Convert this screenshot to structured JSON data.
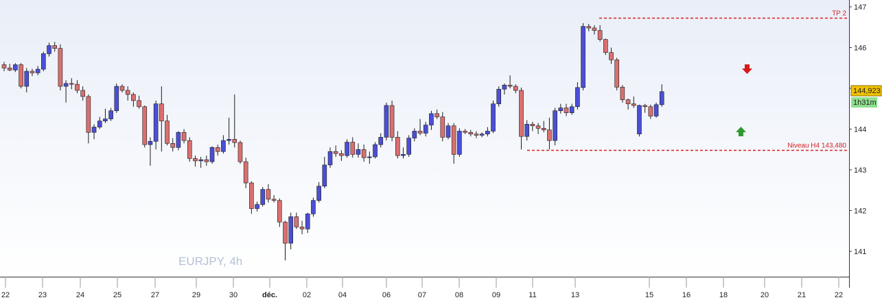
{
  "chart_data": {
    "type": "candlestick",
    "symbol_label": "EURJPY, 4h",
    "ylim": [
      140.55,
      147.15
    ],
    "y_ticks": [
      141,
      142,
      143,
      144,
      145,
      146,
      147
    ],
    "x_labels": [
      "22",
      "23",
      "24",
      "25",
      "27",
      "29",
      "30",
      "déc.",
      "02",
      "04",
      "06",
      "07",
      "08",
      "09",
      "11",
      "13",
      "15",
      "16",
      "18",
      "20",
      "21",
      "22"
    ],
    "last_price": "144,923",
    "countdown": "1h31m",
    "levels": [
      {
        "label": "TP 2",
        "value": 146.73,
        "color": "#d62020"
      },
      {
        "label": "Niveau H4 143,480",
        "value": 143.48,
        "color": "#d62020"
      }
    ],
    "signals": [
      {
        "type": "down-arrow",
        "color": "#d61a1a"
      },
      {
        "type": "up-arrow",
        "color": "#2f9a2f"
      }
    ],
    "colors": {
      "bull": "#4b4fd6",
      "bear": "#d97070",
      "wick": "#1a1a1a",
      "background_top": "#e9eef8",
      "background_bottom": "#ffffff"
    },
    "candles": [
      [
        145.58,
        145.65,
        145.42,
        145.5
      ],
      [
        145.5,
        145.6,
        145.42,
        145.45
      ],
      [
        145.45,
        145.62,
        145.4,
        145.58
      ],
      [
        145.58,
        145.62,
        145.0,
        145.05
      ],
      [
        145.05,
        145.5,
        144.9,
        145.42
      ],
      [
        145.42,
        145.48,
        145.3,
        145.38
      ],
      [
        145.38,
        145.55,
        145.32,
        145.47
      ],
      [
        145.47,
        145.9,
        145.42,
        145.85
      ],
      [
        145.85,
        146.12,
        145.78,
        146.05
      ],
      [
        146.05,
        146.14,
        145.9,
        145.98
      ],
      [
        145.98,
        146.08,
        144.95,
        145.05
      ],
      [
        145.05,
        145.2,
        144.65,
        145.12
      ],
      [
        145.12,
        145.25,
        144.98,
        145.1
      ],
      [
        145.1,
        145.2,
        144.88,
        144.95
      ],
      [
        144.95,
        145.05,
        144.7,
        144.8
      ],
      [
        144.8,
        144.85,
        143.65,
        143.92
      ],
      [
        143.92,
        144.12,
        143.75,
        144.05
      ],
      [
        144.05,
        144.3,
        144.0,
        144.2
      ],
      [
        144.2,
        144.5,
        144.15,
        144.25
      ],
      [
        144.25,
        144.52,
        144.2,
        144.45
      ],
      [
        144.45,
        145.12,
        144.4,
        145.05
      ],
      [
        145.05,
        145.1,
        144.9,
        144.95
      ],
      [
        144.95,
        145.05,
        144.7,
        144.85
      ],
      [
        144.85,
        144.9,
        144.55,
        144.7
      ],
      [
        144.7,
        144.82,
        144.5,
        144.55
      ],
      [
        144.55,
        144.58,
        143.55,
        143.62
      ],
      [
        143.62,
        143.8,
        143.1,
        143.7
      ],
      [
        143.7,
        144.7,
        143.5,
        144.62
      ],
      [
        144.62,
        145.05,
        143.45,
        144.2
      ],
      [
        144.2,
        144.35,
        143.6,
        143.65
      ],
      [
        143.65,
        143.78,
        143.45,
        143.55
      ],
      [
        143.55,
        143.95,
        143.48,
        143.92
      ],
      [
        143.92,
        144.0,
        143.65,
        143.72
      ],
      [
        143.72,
        143.8,
        143.2,
        143.28
      ],
      [
        143.28,
        143.35,
        143.08,
        143.22
      ],
      [
        143.22,
        143.32,
        143.05,
        143.25
      ],
      [
        143.25,
        143.35,
        143.1,
        143.2
      ],
      [
        143.2,
        143.58,
        143.15,
        143.55
      ],
      [
        143.55,
        143.62,
        143.35,
        143.45
      ],
      [
        143.45,
        143.85,
        143.4,
        143.72
      ],
      [
        143.72,
        144.28,
        143.62,
        143.75
      ],
      [
        143.75,
        144.85,
        143.55,
        143.67
      ],
      [
        143.67,
        143.72,
        143.15,
        143.2
      ],
      [
        143.2,
        143.3,
        142.55,
        142.68
      ],
      [
        142.68,
        142.72,
        141.92,
        142.05
      ],
      [
        142.05,
        142.22,
        141.98,
        142.15
      ],
      [
        142.15,
        142.58,
        142.1,
        142.52
      ],
      [
        142.52,
        142.65,
        142.2,
        142.28
      ],
      [
        142.28,
        142.38,
        142.2,
        142.25
      ],
      [
        142.25,
        142.3,
        141.6,
        141.72
      ],
      [
        141.72,
        141.75,
        140.78,
        141.2
      ],
      [
        141.2,
        141.95,
        141.05,
        141.85
      ],
      [
        141.85,
        141.95,
        141.55,
        141.6
      ],
      [
        141.6,
        141.75,
        141.42,
        141.55
      ],
      [
        141.55,
        141.95,
        141.45,
        141.92
      ],
      [
        141.92,
        142.32,
        141.85,
        142.25
      ],
      [
        142.25,
        142.7,
        142.2,
        142.6
      ],
      [
        142.6,
        143.32,
        142.55,
        143.12
      ],
      [
        143.12,
        143.55,
        143.05,
        143.45
      ],
      [
        143.45,
        143.6,
        143.32,
        143.4
      ],
      [
        143.4,
        143.48,
        143.22,
        143.35
      ],
      [
        143.35,
        143.75,
        143.3,
        143.68
      ],
      [
        143.68,
        143.8,
        143.3,
        143.38
      ],
      [
        143.38,
        143.65,
        143.3,
        143.5
      ],
      [
        143.5,
        143.62,
        143.2,
        143.3
      ],
      [
        143.3,
        143.45,
        143.15,
        143.32
      ],
      [
        143.32,
        143.68,
        143.28,
        143.62
      ],
      [
        143.62,
        143.9,
        143.55,
        143.8
      ],
      [
        143.8,
        144.65,
        143.72,
        144.58
      ],
      [
        144.58,
        144.7,
        143.7,
        143.8
      ],
      [
        143.8,
        143.95,
        143.28,
        143.35
      ],
      [
        143.35,
        143.55,
        143.28,
        143.38
      ],
      [
        143.38,
        143.85,
        143.32,
        143.78
      ],
      [
        143.78,
        144.02,
        143.7,
        143.95
      ],
      [
        143.95,
        144.25,
        143.85,
        143.9
      ],
      [
        143.9,
        144.18,
        143.82,
        144.1
      ],
      [
        144.1,
        144.45,
        143.98,
        144.38
      ],
      [
        144.38,
        144.48,
        144.25,
        144.3
      ],
      [
        144.3,
        144.42,
        143.7,
        143.8
      ],
      [
        143.8,
        144.15,
        143.75,
        144.08
      ],
      [
        144.08,
        144.15,
        143.15,
        143.38
      ],
      [
        143.38,
        144.02,
        143.32,
        143.95
      ],
      [
        143.95,
        144.0,
        143.88,
        143.92
      ],
      [
        143.92,
        143.98,
        143.82,
        143.88
      ],
      [
        143.88,
        143.95,
        143.78,
        143.85
      ],
      [
        143.85,
        143.92,
        143.8,
        143.88
      ],
      [
        143.88,
        144.05,
        143.82,
        143.95
      ],
      [
        143.95,
        144.7,
        143.9,
        144.62
      ],
      [
        144.62,
        145.05,
        144.55,
        144.98
      ],
      [
        144.98,
        145.12,
        144.85,
        145.08
      ],
      [
        145.08,
        145.32,
        145.0,
        145.05
      ],
      [
        145.05,
        145.1,
        144.88,
        144.95
      ],
      [
        144.95,
        145.02,
        143.5,
        143.82
      ],
      [
        143.82,
        144.22,
        143.72,
        144.12
      ],
      [
        144.12,
        144.18,
        143.95,
        144.08
      ],
      [
        144.08,
        144.15,
        143.88,
        144.02
      ],
      [
        144.02,
        144.2,
        143.92,
        143.98
      ],
      [
        143.98,
        144.28,
        143.5,
        143.72
      ],
      [
        143.72,
        144.52,
        143.6,
        144.45
      ],
      [
        144.45,
        144.62,
        144.38,
        144.52
      ],
      [
        144.52,
        144.62,
        144.32,
        144.4
      ],
      [
        144.4,
        144.62,
        144.35,
        144.55
      ],
      [
        144.55,
        145.15,
        144.48,
        145.02
      ],
      [
        145.02,
        146.6,
        144.95,
        146.52
      ],
      [
        146.52,
        146.58,
        146.4,
        146.48
      ],
      [
        146.48,
        146.55,
        146.32,
        146.42
      ],
      [
        146.42,
        146.55,
        146.15,
        146.2
      ],
      [
        146.2,
        146.22,
        145.82,
        145.88
      ],
      [
        145.88,
        146.0,
        145.6,
        145.7
      ],
      [
        145.7,
        145.75,
        144.95,
        145.03
      ],
      [
        145.03,
        145.08,
        144.65,
        144.72
      ],
      [
        144.72,
        144.75,
        144.48,
        144.62
      ],
      [
        144.62,
        144.8,
        144.52,
        144.58
      ],
      [
        143.88,
        144.6,
        143.82,
        144.58
      ],
      [
        144.58,
        144.62,
        144.4,
        144.55
      ],
      [
        144.55,
        144.6,
        144.25,
        144.32
      ],
      [
        144.32,
        144.65,
        144.28,
        144.6
      ],
      [
        144.6,
        145.1,
        144.55,
        144.92
      ]
    ]
  }
}
